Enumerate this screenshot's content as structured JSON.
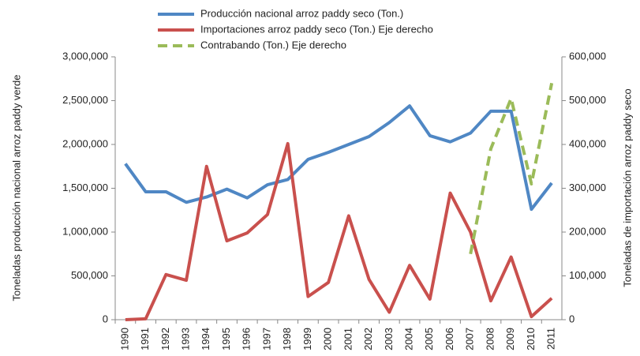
{
  "chart_data": {
    "type": "line",
    "categories": [
      "1990",
      "1991",
      "1992",
      "1993",
      "1994",
      "1995",
      "1996",
      "1997",
      "1998",
      "1999",
      "2000",
      "2001",
      "2002",
      "2003",
      "2004",
      "2005",
      "2006",
      "2007",
      "2008",
      "2009",
      "2010",
      "2011"
    ],
    "series": [
      {
        "name": "Producción nacional arroz paddy seco (Ton.)",
        "color": "#4f87c4",
        "axis": "y",
        "values": [
          1780000,
          1460000,
          1460000,
          1340000,
          1400000,
          1490000,
          1390000,
          1540000,
          1600000,
          1830000,
          1910000,
          2000000,
          2090000,
          2250000,
          2440000,
          2100000,
          2030000,
          2130000,
          2380000,
          2380000,
          1260000,
          1560000
        ]
      },
      {
        "name": "Importaciones arroz paddy seco (Ton.) Eje derecho",
        "color": "#c9504d",
        "axis": "y2",
        "values": [
          0,
          2000,
          103000,
          90000,
          350000,
          180000,
          198000,
          240000,
          402000,
          53000,
          85000,
          237000,
          92000,
          17000,
          124000,
          47000,
          289000,
          200000,
          43000,
          143000,
          7000,
          49000
        ]
      },
      {
        "name": "Contrabando (Ton.) Eje derecho",
        "color": "#9bbb59",
        "axis": "y2",
        "dashed": true,
        "values": [
          null,
          null,
          null,
          null,
          null,
          null,
          null,
          null,
          null,
          null,
          null,
          null,
          null,
          null,
          null,
          null,
          null,
          150000,
          390000,
          505000,
          310000,
          540000
        ]
      }
    ],
    "ylabel": "Toneladas producción nacional arroz paddy verde",
    "y2label": "Toneladas de importación arroz paddy seco",
    "ylim": [
      0,
      3000000
    ],
    "yticks": [
      0,
      {
        "value": 500000,
        "label": "500,000"
      },
      {
        "value": 1000000,
        "label": "1,000,000"
      },
      {
        "value": 1500000,
        "label": "1,500,000"
      },
      {
        "value": 2000000,
        "label": "2,000,000"
      },
      {
        "value": 2500000,
        "label": "2,500,000"
      },
      {
        "value": 3000000,
        "label": "3,000,000"
      }
    ],
    "y2lim": [
      0,
      600000
    ],
    "y2ticks": [
      0,
      {
        "value": 100000,
        "label": "100,000"
      },
      {
        "value": 200000,
        "label": "200,000"
      },
      {
        "value": 300000,
        "label": "300,000"
      },
      {
        "value": 400000,
        "label": "400,000"
      },
      {
        "value": 500000,
        "label": "500,000"
      },
      {
        "value": 600000,
        "label": "600,000"
      }
    ],
    "grid": false
  }
}
